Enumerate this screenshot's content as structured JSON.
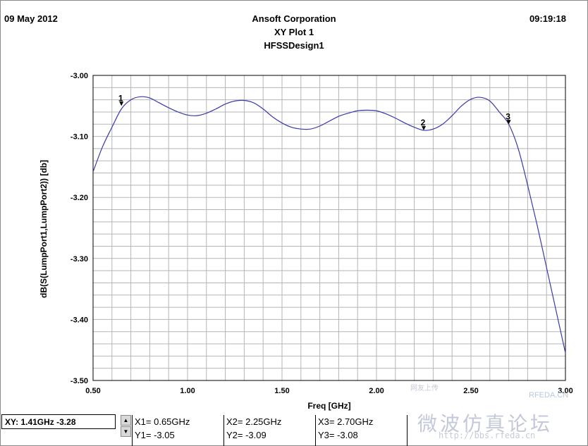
{
  "header": {
    "date": "09 May 2012",
    "company": "Ansoft Corporation",
    "plot_title": "XY Plot 1",
    "design": "HFSSDesign1",
    "time": "09:19:18"
  },
  "cursor_readout": "XY: 1.41GHz -3.28",
  "markers_table": [
    {
      "x": "X1= 0.65GHz",
      "y": "Y1= -3.05"
    },
    {
      "x": "X2= 2.25GHz",
      "y": "Y2= -3.09"
    },
    {
      "x": "X3= 2.70GHz",
      "y": "Y3= -3.08"
    }
  ],
  "watermark": {
    "small": "网友上传",
    "brand": "RFEDA.CN",
    "forum": "微波仿真论坛",
    "url": "http://bbs.rfeda.cn"
  },
  "chart_data": {
    "type": "line",
    "xlabel": "Freq [GHz]",
    "ylabel": "dB(S(LumpPort1,LumpPort2)) [db]",
    "xlim": [
      0.5,
      3.0
    ],
    "ylim": [
      -3.5,
      -3.0
    ],
    "x_ticks": [
      "0.50",
      "1.00",
      "1.50",
      "2.00",
      "2.50",
      "3.00"
    ],
    "y_ticks": [
      "-3.00",
      "-3.10",
      "-3.20",
      "-3.30",
      "-3.40",
      "-3.50"
    ],
    "grid": true,
    "line_color": "#3a3aa8",
    "series": [
      {
        "x": [
          0.5,
          0.55,
          0.6,
          0.65,
          0.7,
          0.75,
          0.8,
          0.85,
          0.9,
          0.95,
          1.0,
          1.05,
          1.1,
          1.15,
          1.2,
          1.25,
          1.3,
          1.35,
          1.4,
          1.45,
          1.5,
          1.55,
          1.6,
          1.65,
          1.7,
          1.75,
          1.8,
          1.85,
          1.9,
          1.95,
          2.0,
          2.05,
          2.1,
          2.15,
          2.2,
          2.25,
          2.3,
          2.35,
          2.4,
          2.45,
          2.5,
          2.55,
          2.6,
          2.65,
          2.7,
          2.75,
          2.8,
          2.85,
          2.9,
          2.95,
          3.0
        ],
        "values": [
          -3.158,
          -3.117,
          -3.085,
          -3.055,
          -3.04,
          -3.035,
          -3.037,
          -3.045,
          -3.053,
          -3.06,
          -3.065,
          -3.066,
          -3.062,
          -3.055,
          -3.047,
          -3.042,
          -3.041,
          -3.045,
          -3.055,
          -3.068,
          -3.078,
          -3.085,
          -3.088,
          -3.088,
          -3.083,
          -3.075,
          -3.067,
          -3.062,
          -3.058,
          -3.057,
          -3.058,
          -3.063,
          -3.07,
          -3.078,
          -3.085,
          -3.09,
          -3.088,
          -3.08,
          -3.066,
          -3.05,
          -3.039,
          -3.036,
          -3.042,
          -3.06,
          -3.08,
          -3.12,
          -3.18,
          -3.245,
          -3.315,
          -3.385,
          -3.455
        ]
      }
    ],
    "markers": [
      {
        "label": "1",
        "x": 0.65,
        "y": -3.05
      },
      {
        "label": "2",
        "x": 2.25,
        "y": -3.09
      },
      {
        "label": "3",
        "x": 2.7,
        "y": -3.08
      }
    ]
  }
}
